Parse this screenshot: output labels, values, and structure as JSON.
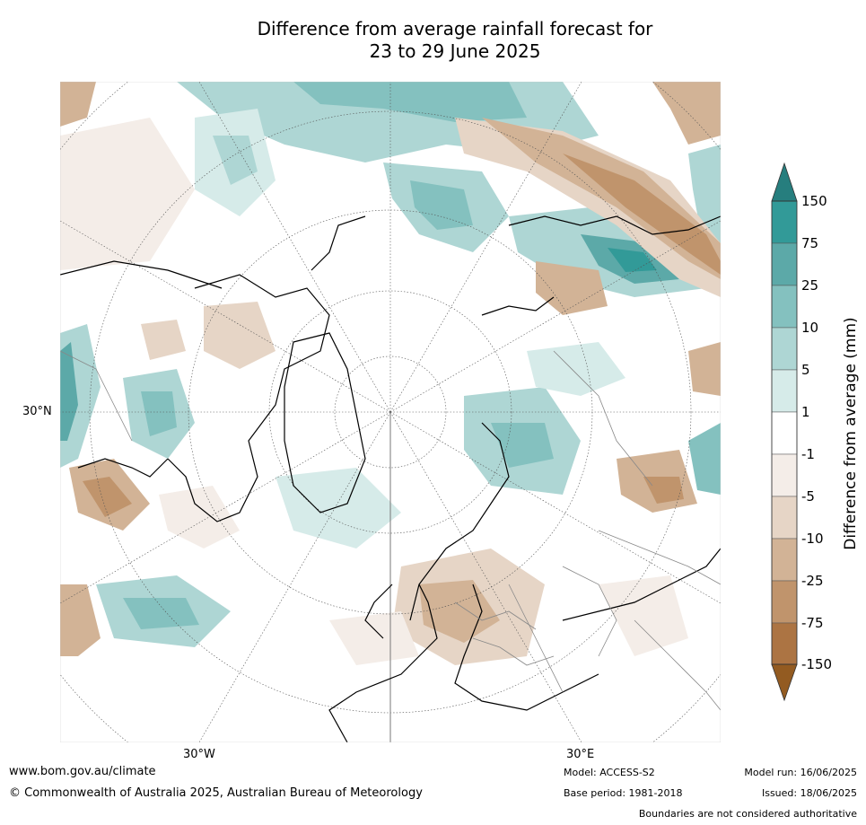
{
  "title_line1": "Difference from average rainfall forecast for",
  "title_line2": "23 to 29 June 2025",
  "map": {
    "lat_label": "30°N",
    "lon_labels": [
      "30°W",
      "30°E"
    ]
  },
  "colorbar": {
    "title": "Difference from average (mm)",
    "levels": [
      "150",
      "75",
      "25",
      "10",
      "5",
      "1",
      "-1",
      "-5",
      "-10",
      "-25",
      "-75",
      "-150"
    ],
    "colors": {
      "top_arrow": "#267e7e",
      "bottom_arrow": "#935b21",
      "bins": [
        "#329a98",
        "#5ca9a8",
        "#84c1bf",
        "#aed6d4",
        "#d6ebe9",
        "#ffffff",
        "#f4ede8",
        "#e6d5c6",
        "#d2b396",
        "#c0946c",
        "#ac7443"
      ]
    }
  },
  "footer": {
    "website": "www.bom.gov.au/climate",
    "copyright": "© Commonwealth of Australia 2025, Australian Bureau of Meteorology",
    "model": "Model: ACCESS-S2",
    "base_period": "Base period: 1981-2018",
    "model_run": "Model run: 16/06/2025",
    "issued": "Issued: 18/06/2025",
    "disclaimer": "Boundaries are not considered authoritative"
  }
}
